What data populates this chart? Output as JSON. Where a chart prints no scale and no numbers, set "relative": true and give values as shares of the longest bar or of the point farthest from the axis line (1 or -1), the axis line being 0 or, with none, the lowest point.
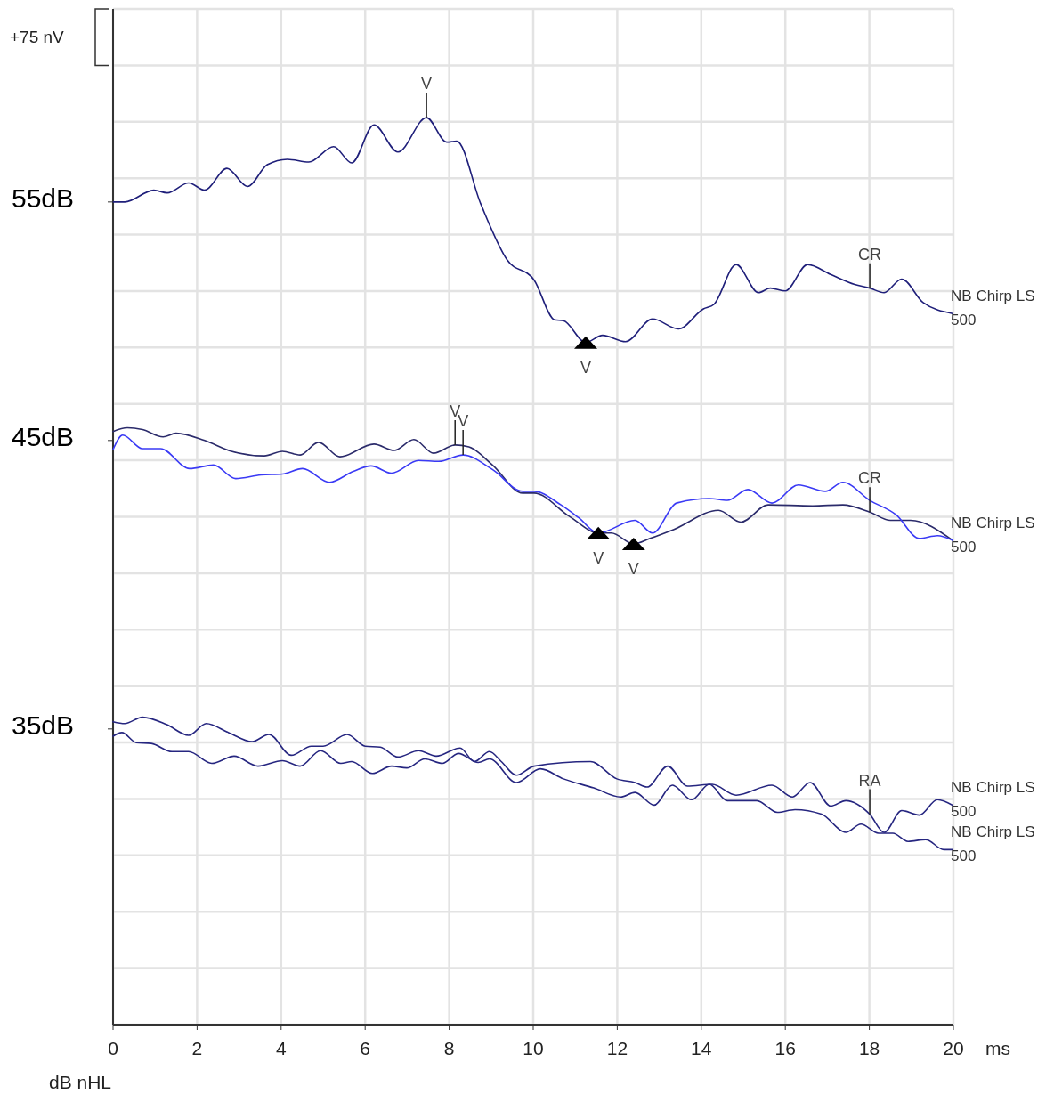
{
  "chart_data": {
    "type": "line",
    "relative": true,
    "xlabel": "ms",
    "ylabel": "dB nHL",
    "xlim": [
      0,
      20
    ],
    "xticks": [
      0,
      2,
      4,
      6,
      8,
      10,
      12,
      14,
      16,
      18,
      20
    ],
    "grid": true,
    "marker": "none",
    "line_style": "solid",
    "series": [
      {
        "name": "NB Chirp LS 500",
        "color": "#1f1f7a",
        "x": [
          0,
          0.28,
          0.97,
          1.29,
          1.8,
          2.18,
          2.71,
          3.2,
          3.67,
          4.15,
          4.66,
          5.25,
          5.68,
          6.21,
          6.78,
          7.46,
          7.94,
          8.18,
          8.75,
          9.38,
          10.02,
          10.51,
          10.72,
          11.25,
          11.65,
          12.2,
          12.84,
          13.45,
          14.05,
          14.3,
          14.83,
          15.36,
          15.64,
          16,
          16.53,
          17.08,
          17.65,
          18.01,
          18.35,
          18.77,
          19.28,
          19.98
        ],
        "values": [
          0.907,
          0.907,
          0.92,
          0.917,
          0.928,
          0.92,
          0.944,
          0.924,
          0.948,
          0.954,
          0.951,
          0.968,
          0.95,
          0.992,
          0.962,
          1,
          0.973,
          0.974,
          0.905,
          0.843,
          0.821,
          0.777,
          0.776,
          0.752,
          0.76,
          0.753,
          0.778,
          0.767,
          0.789,
          0.794,
          0.838,
          0.807,
          0.812,
          0.809,
          0.838,
          0.827,
          0.816,
          0.812,
          0.807,
          0.822,
          0.796,
          0.784
        ]
      },
      {
        "name": "NB Chirp LS 500",
        "color": "#2b2b6b",
        "x": [
          0,
          0.34,
          0.7,
          1.19,
          1.5,
          2.18,
          2.82,
          3.6,
          4.03,
          4.45,
          4.89,
          5.4,
          6.21,
          6.69,
          7.16,
          7.63,
          8.14,
          8.47,
          9.03,
          9.75,
          10.02,
          10.87,
          11.55,
          11.86,
          12.39,
          12.78,
          13.35,
          14.41,
          14.94,
          15.59,
          16.65,
          17.37,
          18.01,
          18.5,
          18.98,
          19.98
        ],
        "values": [
          0.654,
          0.658,
          0.656,
          0.648,
          0.652,
          0.644,
          0.632,
          0.627,
          0.632,
          0.628,
          0.642,
          0.626,
          0.64,
          0.633,
          0.645,
          0.63,
          0.639,
          0.637,
          0.617,
          0.586,
          0.586,
          0.56,
          0.542,
          0.542,
          0.53,
          0.536,
          0.546,
          0.567,
          0.554,
          0.573,
          0.572,
          0.573,
          0.565,
          0.556,
          0.556,
          0.534
        ]
      },
      {
        "color": "#3a3af5",
        "x": [
          0,
          0.23,
          0.7,
          1.13,
          1.82,
          2.39,
          2.92,
          3.52,
          4.03,
          4.51,
          5.15,
          5.72,
          6.14,
          6.63,
          7.27,
          7.75,
          8.33,
          9.03,
          9.75,
          10.02,
          10.66,
          11.08,
          11.55,
          12.42,
          12.84,
          13.41,
          14.19,
          14.62,
          15.11,
          15.68,
          16.31,
          16.95,
          17.37,
          18.01,
          18.64,
          19.19,
          19.62,
          19.98
        ],
        "values": [
          0.634,
          0.65,
          0.635,
          0.635,
          0.613,
          0.617,
          0.602,
          0.606,
          0.607,
          0.613,
          0.598,
          0.61,
          0.616,
          0.608,
          0.622,
          0.621,
          0.628,
          0.612,
          0.588,
          0.588,
          0.573,
          0.559,
          0.542,
          0.556,
          0.542,
          0.575,
          0.58,
          0.578,
          0.59,
          0.575,
          0.595,
          0.588,
          0.598,
          0.578,
          0.562,
          0.536,
          0.539,
          0.534
        ]
      },
      {
        "name": "NB Chirp LS 500",
        "color": "#262680",
        "x": [
          0,
          0.28,
          0.7,
          1.27,
          1.8,
          2.22,
          2.75,
          3.31,
          3.71,
          4.24,
          4.72,
          5,
          5.57,
          6,
          6.36,
          6.78,
          7.27,
          7.69,
          8.26,
          8.6,
          8.96,
          9.24,
          9.6,
          10.02,
          11.36,
          11.99,
          12.42,
          12.71,
          13.2,
          13.67,
          14.26,
          14.83,
          15.68,
          16.17,
          16.59,
          17.08,
          17.44,
          18.01,
          18.35,
          18.77,
          19.19,
          19.62,
          19.98
        ],
        "values": [
          0.334,
          0.332,
          0.339,
          0.331,
          0.319,
          0.332,
          0.322,
          0.312,
          0.32,
          0.297,
          0.307,
          0.307,
          0.32,
          0.307,
          0.306,
          0.295,
          0.302,
          0.296,
          0.305,
          0.29,
          0.301,
          0.29,
          0.275,
          0.285,
          0.29,
          0.271,
          0.267,
          0.262,
          0.285,
          0.263,
          0.265,
          0.253,
          0.264,
          0.251,
          0.267,
          0.241,
          0.247,
          0.232,
          0.212,
          0.236,
          0.231,
          0.248,
          0.242
        ]
      },
      {
        "name": "NB Chirp LS 500",
        "color": "#262680",
        "x": [
          0,
          0.21,
          0.55,
          0.91,
          1.4,
          1.8,
          2.35,
          2.88,
          3.45,
          4.03,
          4.45,
          4.94,
          5.42,
          5.68,
          6.17,
          6.63,
          6.99,
          7.42,
          7.84,
          8.22,
          8.69,
          8.96,
          9.6,
          10.17,
          10.72,
          11.44,
          12.08,
          12.42,
          12.88,
          13.31,
          13.77,
          14.19,
          14.62,
          15.32,
          15.81,
          16.23,
          16.86,
          17.44,
          17.8,
          18.22,
          18.56,
          18.92,
          19.34,
          19.77,
          19.98
        ],
        "values": [
          0.318,
          0.322,
          0.311,
          0.31,
          0.301,
          0.301,
          0.288,
          0.296,
          0.285,
          0.291,
          0.285,
          0.302,
          0.288,
          0.29,
          0.277,
          0.285,
          0.283,
          0.293,
          0.288,
          0.299,
          0.289,
          0.293,
          0.267,
          0.282,
          0.271,
          0.261,
          0.251,
          0.256,
          0.242,
          0.264,
          0.248,
          0.265,
          0.247,
          0.247,
          0.234,
          0.237,
          0.232,
          0.212,
          0.221,
          0.211,
          0.211,
          0.202,
          0.204,
          0.193,
          0.193
        ]
      },
      {
        "type": "scatter",
        "marker": "triangle",
        "color": "#000000",
        "x": [
          11.25,
          11.55,
          12.39
        ],
        "values": [
          0.752,
          0.542,
          0.53
        ]
      }
    ],
    "annotations": [
      "+75 nV",
      "55dB",
      "45dB",
      "35dB",
      {
        "text": "V",
        "x": 7.46,
        "y": 1
      },
      {
        "text": "V",
        "x": 11.25,
        "y": 0.752
      },
      {
        "text": "CR",
        "x": 18.01,
        "y": 0.812
      },
      {
        "text": "V",
        "x": 8.14,
        "y": 0.639
      },
      {
        "text": "V",
        "x": 8.33,
        "y": 0.628
      },
      {
        "text": "V",
        "x": 11.55,
        "y": 0.542
      },
      {
        "text": "V",
        "x": 12.39,
        "y": 0.53
      },
      {
        "text": "CR",
        "x": 18.01,
        "y": 0.565
      },
      {
        "text": "RA",
        "x": 18.01,
        "y": 0.232
      }
    ]
  }
}
